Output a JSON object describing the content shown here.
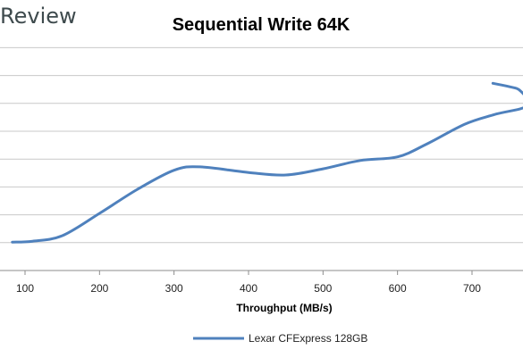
{
  "watermark": "Review",
  "chart_data": {
    "type": "line",
    "title": "Sequential Write 64K",
    "xlabel": "Throughput (MB/s)",
    "ylabel": "",
    "x_ticks": [
      100,
      200,
      300,
      400,
      500,
      600,
      700
    ],
    "xlim": [
      83,
      775
    ],
    "ylim": [
      0,
      10
    ],
    "grid": true,
    "legend_position": "bottom",
    "series": [
      {
        "name": "Lexar CFExpress 128GB",
        "color": "#4f81bd",
        "points": [
          {
            "x": 83,
            "y": 1.02
          },
          {
            "x": 110,
            "y": 1.05
          },
          {
            "x": 150,
            "y": 1.25
          },
          {
            "x": 200,
            "y": 2.05
          },
          {
            "x": 250,
            "y": 2.9
          },
          {
            "x": 300,
            "y": 3.6
          },
          {
            "x": 335,
            "y": 3.72
          },
          {
            "x": 400,
            "y": 3.52
          },
          {
            "x": 450,
            "y": 3.43
          },
          {
            "x": 500,
            "y": 3.65
          },
          {
            "x": 550,
            "y": 3.95
          },
          {
            "x": 600,
            "y": 4.08
          },
          {
            "x": 640,
            "y": 4.55
          },
          {
            "x": 690,
            "y": 5.25
          },
          {
            "x": 730,
            "y": 5.6
          },
          {
            "x": 775,
            "y": 5.92
          },
          {
            "x": 765,
            "y": 6.45
          },
          {
            "x": 750,
            "y": 6.6
          },
          {
            "x": 728,
            "y": 6.72
          }
        ]
      }
    ]
  }
}
